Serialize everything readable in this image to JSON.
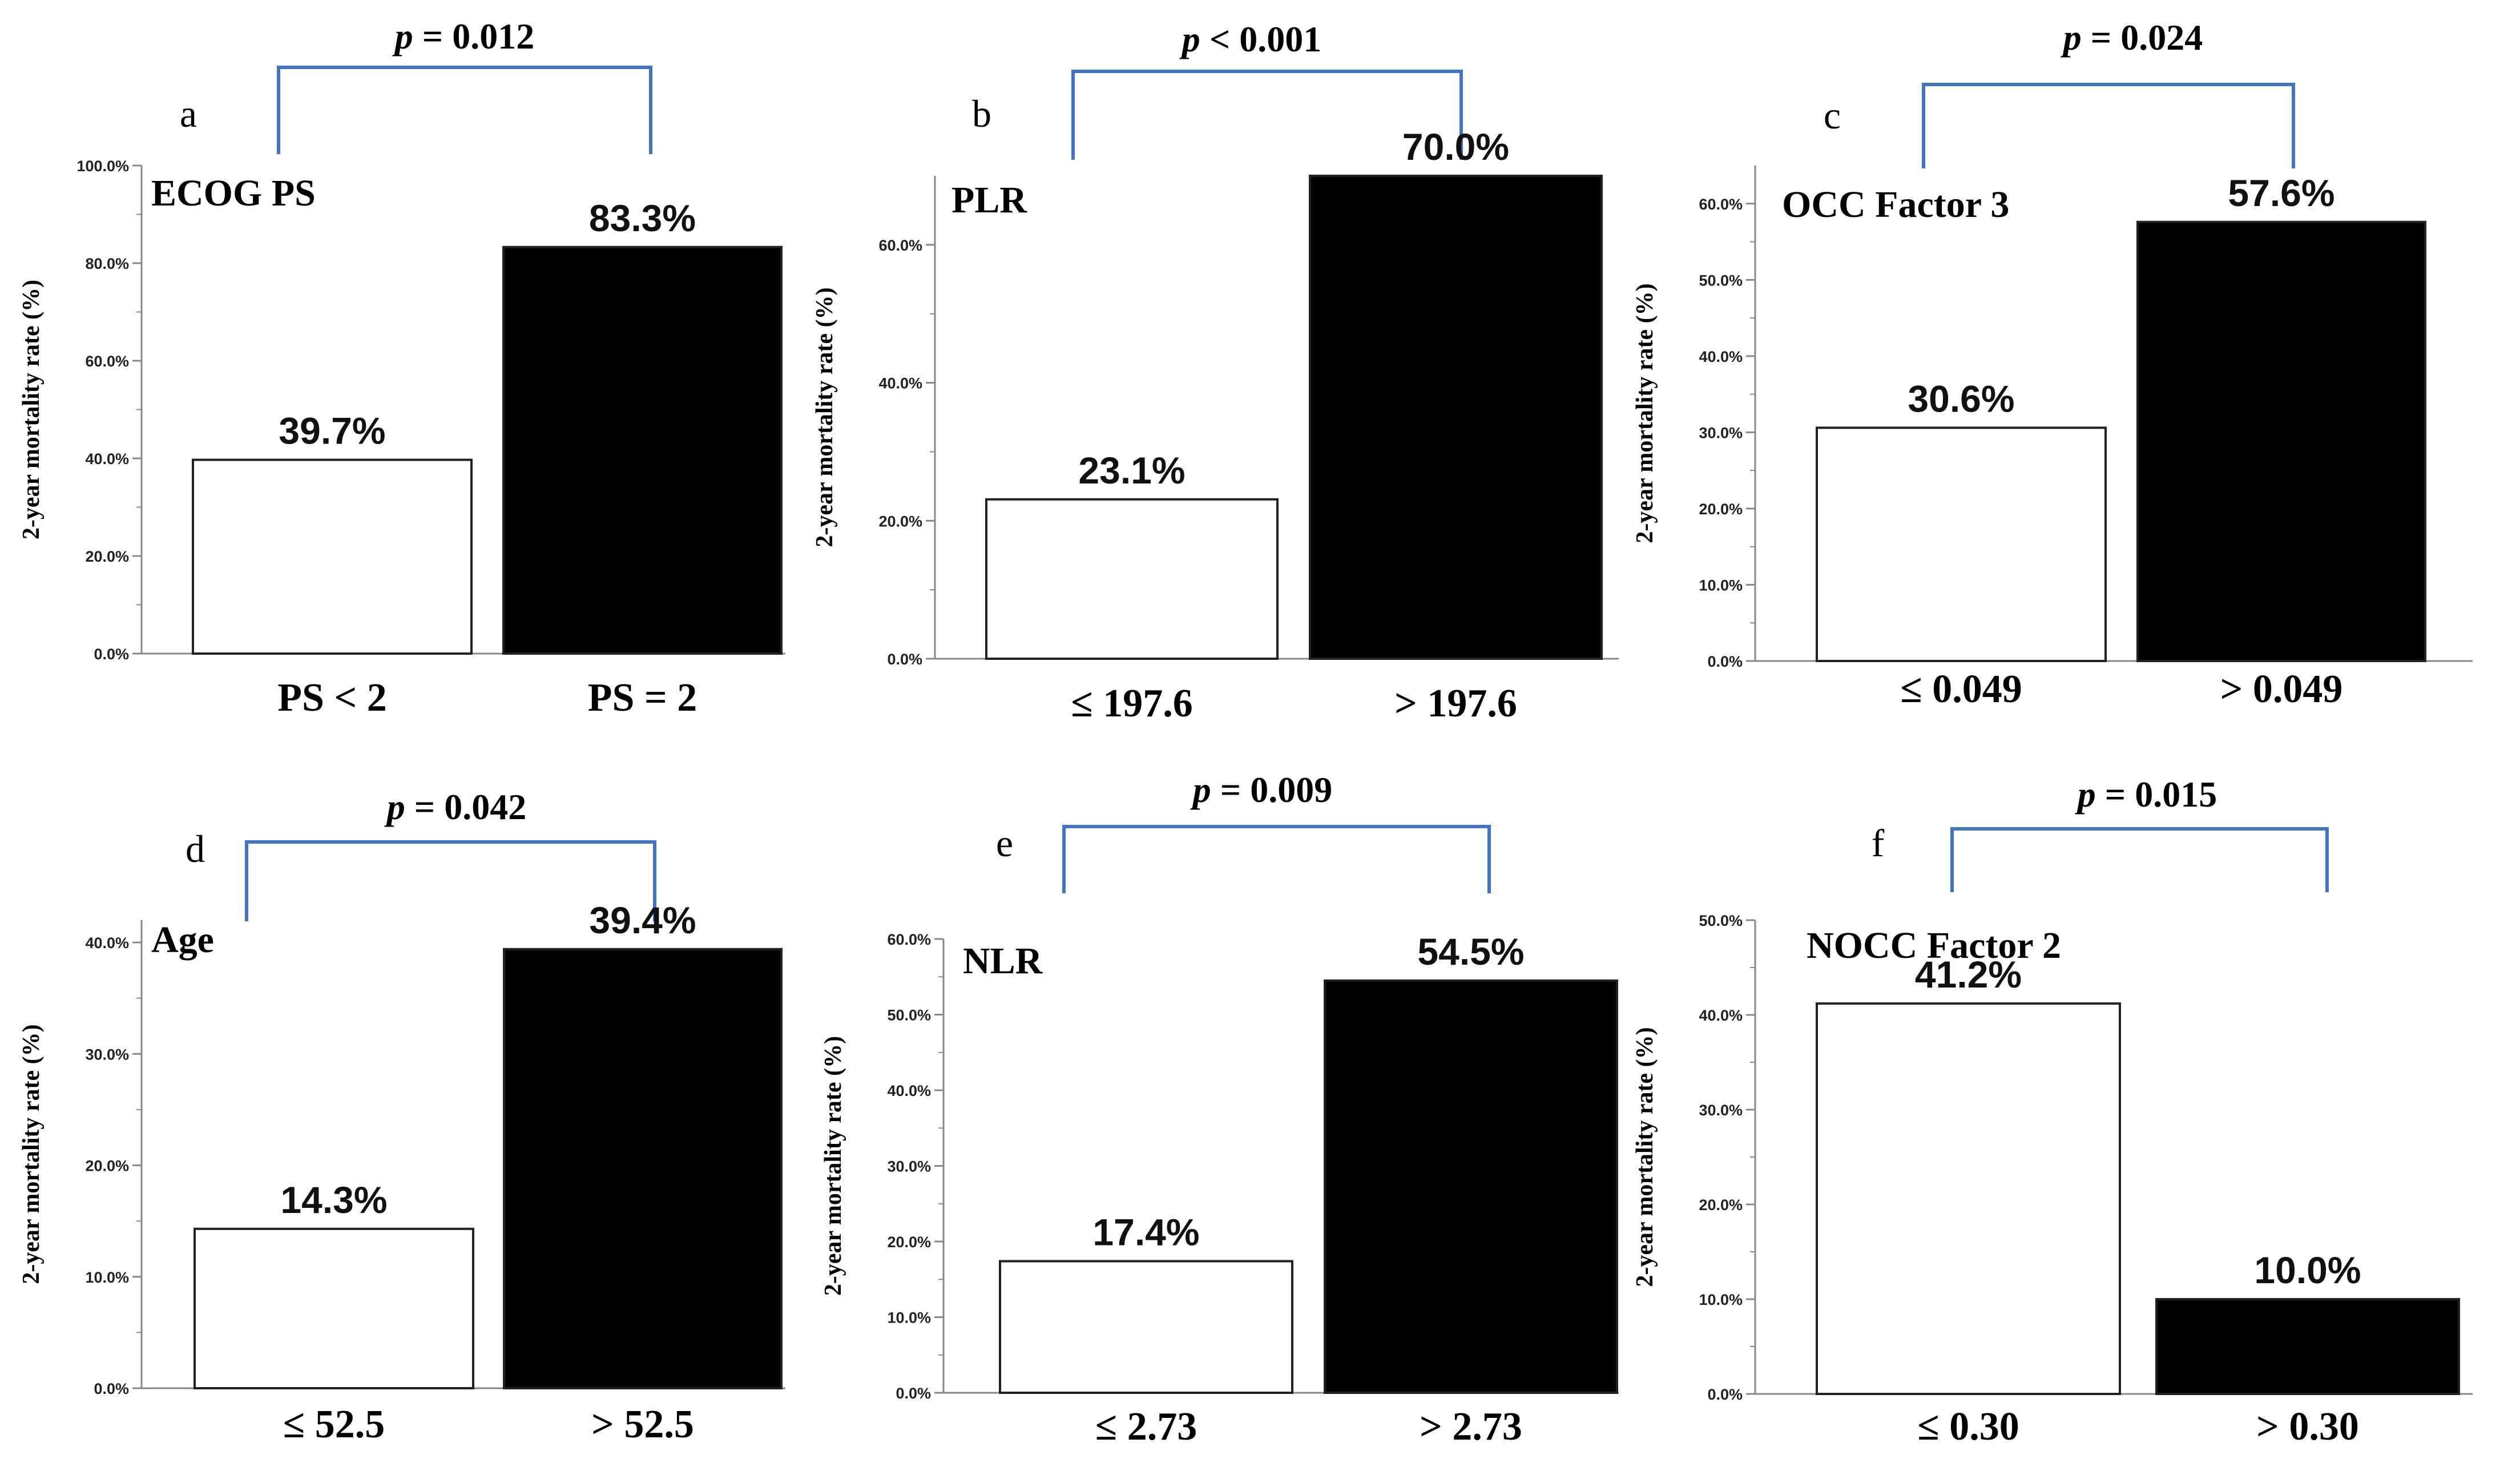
{
  "figure": {
    "ylabel": "2-year mortality  rate (%)"
  },
  "chart_data": [
    {
      "type": "bar",
      "panel_letter": "a",
      "title": "ECOG PS",
      "categories": [
        "PS < 2",
        "PS = 2"
      ],
      "values": [
        39.7,
        83.3
      ],
      "value_labels": [
        "39.7%",
        "83.3%"
      ],
      "bar_colors": [
        "#ffffff",
        "#000000"
      ],
      "ylabel": "2-year mortality  rate (%)",
      "ylim": [
        0,
        100
      ],
      "yticks": [
        0,
        20,
        40,
        60,
        80,
        100
      ],
      "ytick_labels": [
        "0.0%",
        "20.0%",
        "40.0%",
        "60.0%",
        "80.0%",
        "100.0%"
      ],
      "p_label": "= 0.012"
    },
    {
      "type": "bar",
      "panel_letter": "b",
      "title": "PLR",
      "categories": [
        "≤ 197.6",
        "> 197.6"
      ],
      "values": [
        23.1,
        70.0
      ],
      "value_labels": [
        "23.1%",
        "70.0%"
      ],
      "bar_colors": [
        "#ffffff",
        "#000000"
      ],
      "ylabel": "2-year mortality  rate (%)",
      "ylim": [
        0,
        70
      ],
      "yticks": [
        0,
        20,
        40,
        60
      ],
      "ytick_labels": [
        "0.0%",
        "20.0%",
        "40.0%",
        "60.0%"
      ],
      "p_label": "< 0.001"
    },
    {
      "type": "bar",
      "panel_letter": "c",
      "title": "OCC Factor 3",
      "categories": [
        "≤ 0.049",
        "> 0.049"
      ],
      "values": [
        30.6,
        57.6
      ],
      "value_labels": [
        "30.6%",
        "57.6%"
      ],
      "bar_colors": [
        "#ffffff",
        "#000000"
      ],
      "ylabel": "2-year mortality  rate (%)",
      "ylim": [
        0,
        65
      ],
      "yticks": [
        0,
        10,
        20,
        30,
        40,
        50,
        60
      ],
      "ytick_labels": [
        "0.0%",
        "10.0%",
        "20.0%",
        "30.0%",
        "40.0%",
        "50.0%",
        "60.0%"
      ],
      "p_label": "= 0.024"
    },
    {
      "type": "bar",
      "panel_letter": "d",
      "title": "Age",
      "categories": [
        "≤ 52.5",
        "> 52.5"
      ],
      "values": [
        14.3,
        39.4
      ],
      "value_labels": [
        "14.3%",
        "39.4%"
      ],
      "bar_colors": [
        "#ffffff",
        "#000000"
      ],
      "ylabel": "2-year mortality  rate (%)",
      "ylim": [
        0,
        42
      ],
      "yticks": [
        0,
        10,
        20,
        30,
        40
      ],
      "ytick_labels": [
        "0.0%",
        "10.0%",
        "20.0%",
        "30.0%",
        "40.0%"
      ],
      "p_label": "= 0.042"
    },
    {
      "type": "bar",
      "panel_letter": "e",
      "title": "NLR",
      "categories": [
        "≤ 2.73",
        "> 2.73"
      ],
      "values": [
        17.4,
        54.5
      ],
      "value_labels": [
        "17.4%",
        "54.5%"
      ],
      "bar_colors": [
        "#ffffff",
        "#000000"
      ],
      "ylabel": "2-year mortality  rate (%)",
      "ylim": [
        0,
        60
      ],
      "yticks": [
        0,
        10,
        20,
        30,
        40,
        50,
        60
      ],
      "ytick_labels": [
        "0.0%",
        "10.0%",
        "20.0%",
        "30.0%",
        "40.0%",
        "50.0%",
        "60.0%"
      ],
      "p_label": "= 0.009"
    },
    {
      "type": "bar",
      "panel_letter": "f",
      "title": "NOCC Factor 2",
      "categories": [
        "≤ 0.30",
        "> 0.30"
      ],
      "values": [
        41.2,
        10.0
      ],
      "value_labels": [
        "41.2%",
        "10.0%"
      ],
      "bar_colors": [
        "#ffffff",
        "#000000"
      ],
      "ylabel": "2-year mortality  rate (%)",
      "ylim": [
        0,
        50
      ],
      "yticks": [
        0,
        10,
        20,
        30,
        40,
        50
      ],
      "ytick_labels": [
        "0.0%",
        "10.0%",
        "20.0%",
        "30.0%",
        "40.0%",
        "50.0%"
      ],
      "p_label": "= 0.015"
    }
  ]
}
